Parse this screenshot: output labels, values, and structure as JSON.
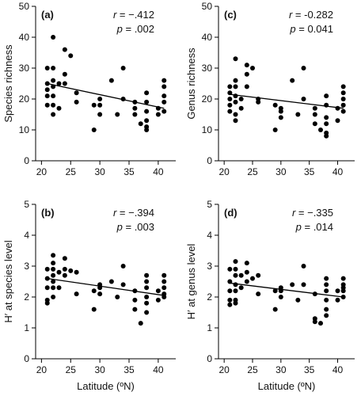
{
  "chart_data": [
    {
      "type": "scatter",
      "panel_label": "(a)",
      "ylabel": "Species richness",
      "xlabel": "",
      "xlim": [
        19,
        43
      ],
      "ylim": [
        0,
        50
      ],
      "xticks": [
        "20",
        "25",
        "30",
        "35",
        "40"
      ],
      "yticks": [
        "0",
        "10",
        "20",
        "30",
        "40",
        "50"
      ],
      "r_label": "r = −.412",
      "p_label": "p = .002",
      "trendline": {
        "x": [
          21,
          41
        ],
        "y": [
          25,
          17
        ]
      },
      "points": [
        [
          21,
          30
        ],
        [
          21,
          25
        ],
        [
          21,
          23
        ],
        [
          21,
          21
        ],
        [
          21,
          18
        ],
        [
          22,
          40
        ],
        [
          22,
          30
        ],
        [
          22,
          26
        ],
        [
          22,
          24
        ],
        [
          22,
          21
        ],
        [
          22,
          18
        ],
        [
          22,
          15
        ],
        [
          23,
          25
        ],
        [
          23,
          17
        ],
        [
          24,
          36
        ],
        [
          24,
          28
        ],
        [
          24,
          25
        ],
        [
          25,
          34
        ],
        [
          26,
          22
        ],
        [
          26,
          19
        ],
        [
          29,
          18
        ],
        [
          29,
          10
        ],
        [
          30,
          20
        ],
        [
          30,
          18
        ],
        [
          30,
          15
        ],
        [
          32,
          26
        ],
        [
          33,
          15
        ],
        [
          34,
          30
        ],
        [
          34,
          20
        ],
        [
          36,
          19
        ],
        [
          36,
          17
        ],
        [
          36,
          15
        ],
        [
          37,
          12
        ],
        [
          38,
          22
        ],
        [
          38,
          19
        ],
        [
          38,
          16
        ],
        [
          38,
          13
        ],
        [
          38,
          11
        ],
        [
          38,
          10
        ],
        [
          40,
          17
        ],
        [
          40,
          15
        ],
        [
          41,
          26
        ],
        [
          41,
          24
        ],
        [
          41,
          21
        ],
        [
          41,
          19
        ],
        [
          41,
          16
        ]
      ]
    },
    {
      "type": "scatter",
      "panel_label": "(c)",
      "ylabel": "Genus richness",
      "xlabel": "",
      "xlim": [
        19,
        43
      ],
      "ylim": [
        0,
        50
      ],
      "xticks": [
        "20",
        "25",
        "30",
        "35",
        "40"
      ],
      "yticks": [
        "0",
        "10",
        "20",
        "30",
        "40",
        "50"
      ],
      "r_label": "r = -0.282",
      "p_label": "p = 0.041",
      "trendline": {
        "x": [
          21,
          41
        ],
        "y": [
          21.5,
          17
        ]
      },
      "points": [
        [
          21,
          24
        ],
        [
          21,
          22
        ],
        [
          21,
          20
        ],
        [
          21,
          18
        ],
        [
          21,
          16
        ],
        [
          22,
          33
        ],
        [
          22,
          26
        ],
        [
          22,
          24
        ],
        [
          22,
          21
        ],
        [
          22,
          19
        ],
        [
          22,
          15
        ],
        [
          22,
          13
        ],
        [
          23,
          20
        ],
        [
          23,
          17
        ],
        [
          24,
          31
        ],
        [
          24,
          28
        ],
        [
          24,
          24
        ],
        [
          25,
          30
        ],
        [
          26,
          20
        ],
        [
          26,
          19
        ],
        [
          29,
          18
        ],
        [
          29,
          10
        ],
        [
          30,
          16
        ],
        [
          30,
          17
        ],
        [
          30,
          14
        ],
        [
          32,
          26
        ],
        [
          33,
          15
        ],
        [
          34,
          30
        ],
        [
          34,
          20
        ],
        [
          36,
          17
        ],
        [
          36,
          15
        ],
        [
          36,
          12
        ],
        [
          37,
          10
        ],
        [
          38,
          21
        ],
        [
          38,
          18
        ],
        [
          38,
          14
        ],
        [
          38,
          12
        ],
        [
          38,
          9
        ],
        [
          38,
          8
        ],
        [
          40,
          17
        ],
        [
          40,
          13
        ],
        [
          41,
          24
        ],
        [
          41,
          22
        ],
        [
          41,
          20
        ],
        [
          41,
          18
        ],
        [
          41,
          16
        ]
      ]
    },
    {
      "type": "scatter",
      "panel_label": "(b)",
      "ylabel": "H′ at species level",
      "xlabel": "Latitude (ºN)",
      "xlim": [
        19,
        43
      ],
      "ylim": [
        0,
        5
      ],
      "xticks": [
        "20",
        "25",
        "30",
        "35",
        "40"
      ],
      "yticks": [
        "0",
        "1",
        "2",
        "3",
        "4",
        "5"
      ],
      "r_label": "r = −.394",
      "p_label": "p = .003",
      "trendline": {
        "x": [
          21,
          41
        ],
        "y": [
          2.6,
          2.05
        ]
      },
      "points": [
        [
          21,
          2.9
        ],
        [
          21,
          2.6
        ],
        [
          21,
          2.3
        ],
        [
          21,
          1.9
        ],
        [
          21,
          1.8
        ],
        [
          22,
          3.35
        ],
        [
          22,
          3.1
        ],
        [
          22,
          2.9
        ],
        [
          22,
          2.7
        ],
        [
          22,
          2.5
        ],
        [
          22,
          2.3
        ],
        [
          22,
          2.0
        ],
        [
          23,
          2.8
        ],
        [
          23,
          2.3
        ],
        [
          24,
          3.25
        ],
        [
          24,
          2.9
        ],
        [
          24,
          2.7
        ],
        [
          25,
          2.85
        ],
        [
          26,
          2.8
        ],
        [
          26,
          2.1
        ],
        [
          29,
          2.2
        ],
        [
          29,
          1.6
        ],
        [
          30,
          2.4
        ],
        [
          30,
          2.3
        ],
        [
          30,
          2.1
        ],
        [
          32,
          2.5
        ],
        [
          33,
          2.0
        ],
        [
          34,
          3.0
        ],
        [
          34,
          2.4
        ],
        [
          36,
          2.2
        ],
        [
          36,
          1.9
        ],
        [
          36,
          1.6
        ],
        [
          37,
          1.15
        ],
        [
          38,
          2.7
        ],
        [
          38,
          2.5
        ],
        [
          38,
          2.3
        ],
        [
          38,
          2.0
        ],
        [
          38,
          1.8
        ],
        [
          38,
          1.5
        ],
        [
          40,
          2.2
        ],
        [
          40,
          1.9
        ],
        [
          41,
          2.7
        ],
        [
          41,
          2.5
        ],
        [
          41,
          2.3
        ],
        [
          41,
          2.1
        ],
        [
          41,
          2.0
        ]
      ]
    },
    {
      "type": "scatter",
      "panel_label": "(d)",
      "ylabel": "H′ at genus level",
      "xlabel": "Latitude (ºN)",
      "xlim": [
        19,
        43
      ],
      "ylim": [
        0,
        5
      ],
      "xticks": [
        "20",
        "25",
        "30",
        "35",
        "40"
      ],
      "yticks": [
        "0",
        "1",
        "2",
        "3",
        "4",
        "5"
      ],
      "r_label": "r = −.335",
      "p_label": "p = .014",
      "trendline": {
        "x": [
          21,
          41
        ],
        "y": [
          2.45,
          2.0
        ]
      },
      "points": [
        [
          21,
          2.9
        ],
        [
          21,
          2.5
        ],
        [
          21,
          2.2
        ],
        [
          21,
          1.9
        ],
        [
          21,
          1.75
        ],
        [
          22,
          3.15
        ],
        [
          22,
          2.9
        ],
        [
          22,
          2.7
        ],
        [
          22,
          2.4
        ],
        [
          22,
          2.2
        ],
        [
          22,
          1.9
        ],
        [
          22,
          1.8
        ],
        [
          23,
          2.7
        ],
        [
          23,
          2.3
        ],
        [
          24,
          3.1
        ],
        [
          24,
          2.8
        ],
        [
          24,
          2.5
        ],
        [
          25,
          2.6
        ],
        [
          26,
          2.7
        ],
        [
          26,
          2.1
        ],
        [
          29,
          2.2
        ],
        [
          29,
          1.6
        ],
        [
          30,
          2.3
        ],
        [
          30,
          2.2
        ],
        [
          30,
          2.0
        ],
        [
          32,
          2.4
        ],
        [
          33,
          1.9
        ],
        [
          34,
          3.0
        ],
        [
          34,
          2.4
        ],
        [
          36,
          2.1
        ],
        [
          36,
          1.3
        ],
        [
          36,
          1.2
        ],
        [
          37,
          1.15
        ],
        [
          38,
          2.6
        ],
        [
          38,
          2.4
        ],
        [
          38,
          2.2
        ],
        [
          38,
          1.9
        ],
        [
          38,
          1.6
        ],
        [
          38,
          1.4
        ],
        [
          40,
          2.2
        ],
        [
          40,
          1.9
        ],
        [
          41,
          2.6
        ],
        [
          41,
          2.4
        ],
        [
          41,
          2.3
        ],
        [
          41,
          2.2
        ],
        [
          41,
          2.0
        ]
      ]
    }
  ]
}
